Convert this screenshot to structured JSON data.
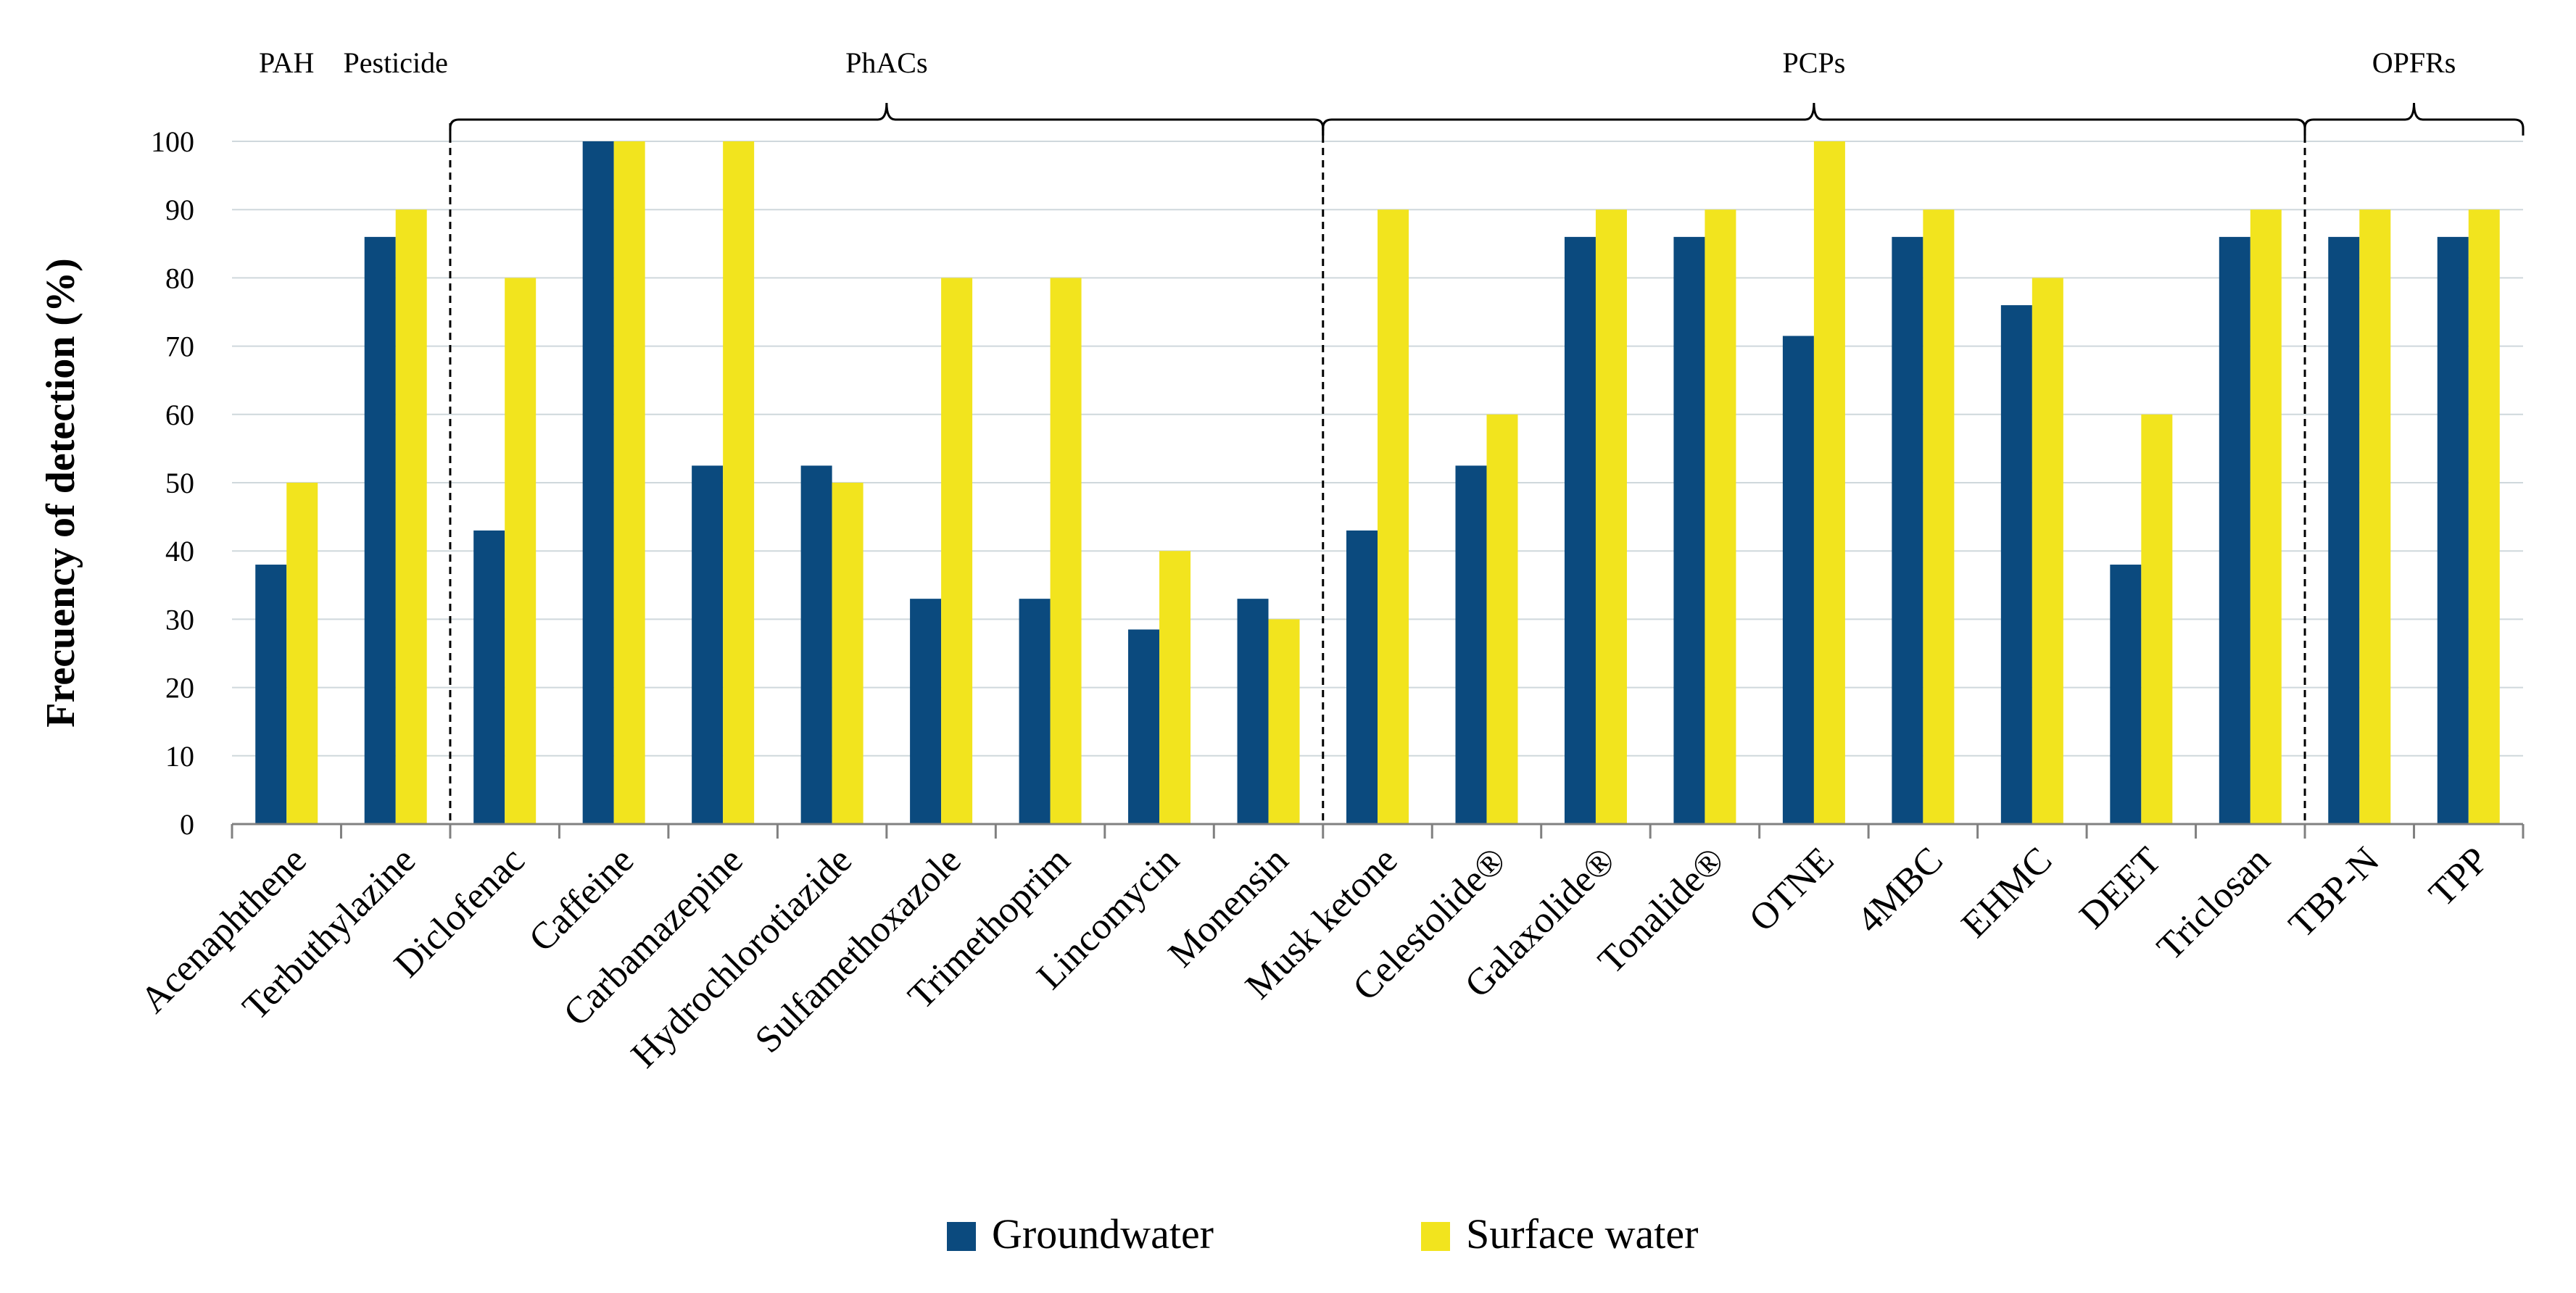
{
  "chart_data": {
    "type": "bar",
    "ylabel": "Frecuency of detection  (%)",
    "ylim": [
      0,
      100
    ],
    "yticks": [
      0,
      10,
      20,
      30,
      40,
      50,
      60,
      70,
      80,
      90,
      100
    ],
    "grid": true,
    "legend_position": "bottom",
    "categories": [
      "Acenaphthene",
      "Terbuthylazine",
      "Diclofenac",
      "Caffeine",
      "Carbamazepine",
      "Hydrochlorotiazide",
      "Sulfamethoxazole",
      "Trimethoprim",
      "Lincomycin",
      "Monensin",
      "Musk ketone",
      "Celestolide®",
      "Galaxolide®",
      "Tonalide®",
      "OTNE",
      "4MBC",
      "EHMC",
      "DEET",
      "Triclosan",
      "TBP-N",
      "TPP"
    ],
    "series": [
      {
        "name": "Groundwater",
        "color": "#0b4a7e",
        "values": [
          38,
          86,
          43,
          100,
          52.5,
          52.5,
          33,
          33,
          28.5,
          33,
          43,
          52.5,
          86,
          86,
          71.5,
          86,
          76,
          38,
          86,
          86,
          86
        ]
      },
      {
        "name": "Surface water",
        "color": "#f2e41e",
        "values": [
          50,
          90,
          80,
          100,
          100,
          50,
          80,
          80,
          40,
          30,
          90,
          60,
          90,
          90,
          100,
          90,
          80,
          60,
          90,
          90,
          90
        ]
      }
    ],
    "groups": [
      {
        "label": "PAH",
        "categories": [
          "Acenaphthene"
        ]
      },
      {
        "label": "Pesticide",
        "categories": [
          "Terbuthylazine"
        ]
      },
      {
        "label": "PhACs",
        "categories": [
          "Diclofenac",
          "Caffeine",
          "Carbamazepine",
          "Hydrochlorotiazide",
          "Sulfamethoxazole",
          "Trimethoprim",
          "Lincomycin",
          "Monensin"
        ]
      },
      {
        "label": "PCPs",
        "categories": [
          "Musk ketone",
          "Celestolide®",
          "Galaxolide®",
          "Tonalide®",
          "OTNE",
          "4MBC",
          "EHMC",
          "DEET",
          "Triclosan"
        ]
      },
      {
        "label": "OPFRs",
        "categories": [
          "TBP-N",
          "TPP"
        ]
      }
    ]
  }
}
